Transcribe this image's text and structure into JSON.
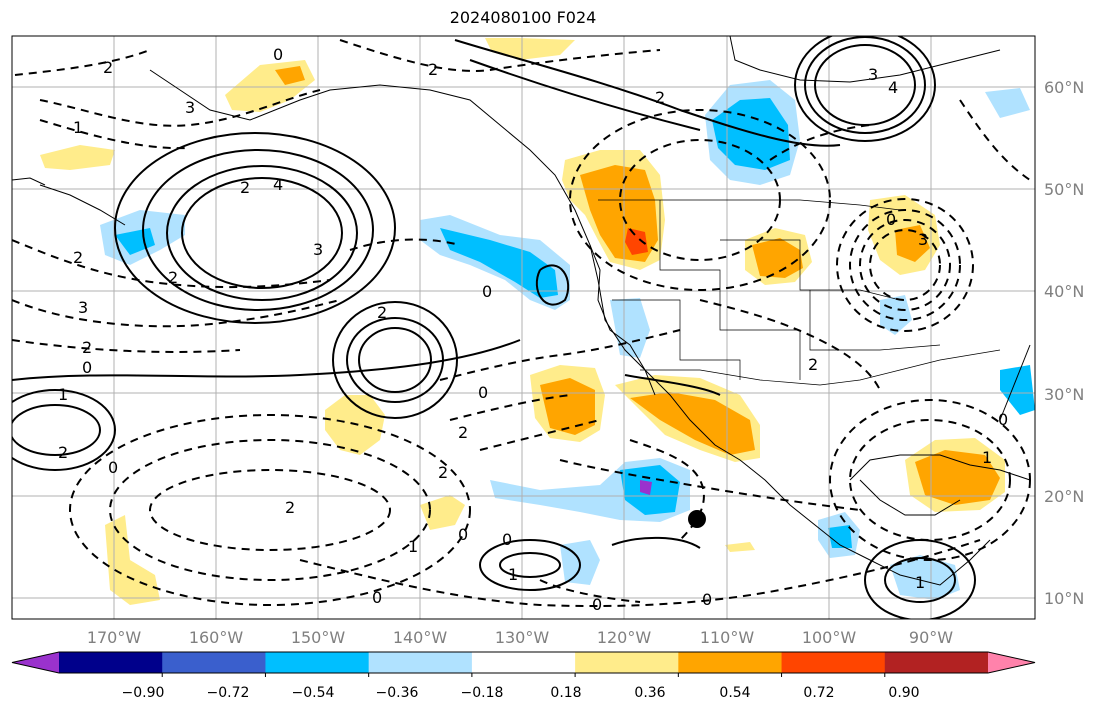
{
  "title": "2024080100 F024",
  "lat_labels": [
    "60°N",
    "50°N",
    "40°N",
    "30°N",
    "20°N",
    "10°N"
  ],
  "lon_labels": [
    "170°W",
    "160°W",
    "150°W",
    "140°W",
    "130°W",
    "120°W",
    "110°W",
    "100°W",
    "90°W"
  ],
  "colorbar": {
    "ticks": [
      "−0.90",
      "−0.72",
      "−0.54",
      "−0.36",
      "−0.18",
      "0.18",
      "0.36",
      "0.54",
      "0.72",
      "0.90"
    ],
    "colors": [
      "#9a32cd",
      "#00008b",
      "#3a5fcd",
      "#00bfff",
      "#b0e2ff",
      "#ffffff",
      "#ffec8b",
      "#ffa500",
      "#ff4500",
      "#b22222",
      "#ff82ab"
    ]
  },
  "contour_labels": [
    "2",
    "0",
    "3",
    "1",
    "2",
    "4",
    "3",
    "2",
    "0",
    "2",
    "3",
    "2",
    "0",
    "1",
    "2",
    "2",
    "0",
    "2",
    "0",
    "2",
    "0",
    "1",
    "0",
    "2",
    "0",
    "1",
    "0",
    "0",
    "2",
    "2",
    "3",
    "4",
    "0",
    "3",
    "2",
    "1",
    "0",
    "1"
  ],
  "storm_marker": "hurricane-position"
}
